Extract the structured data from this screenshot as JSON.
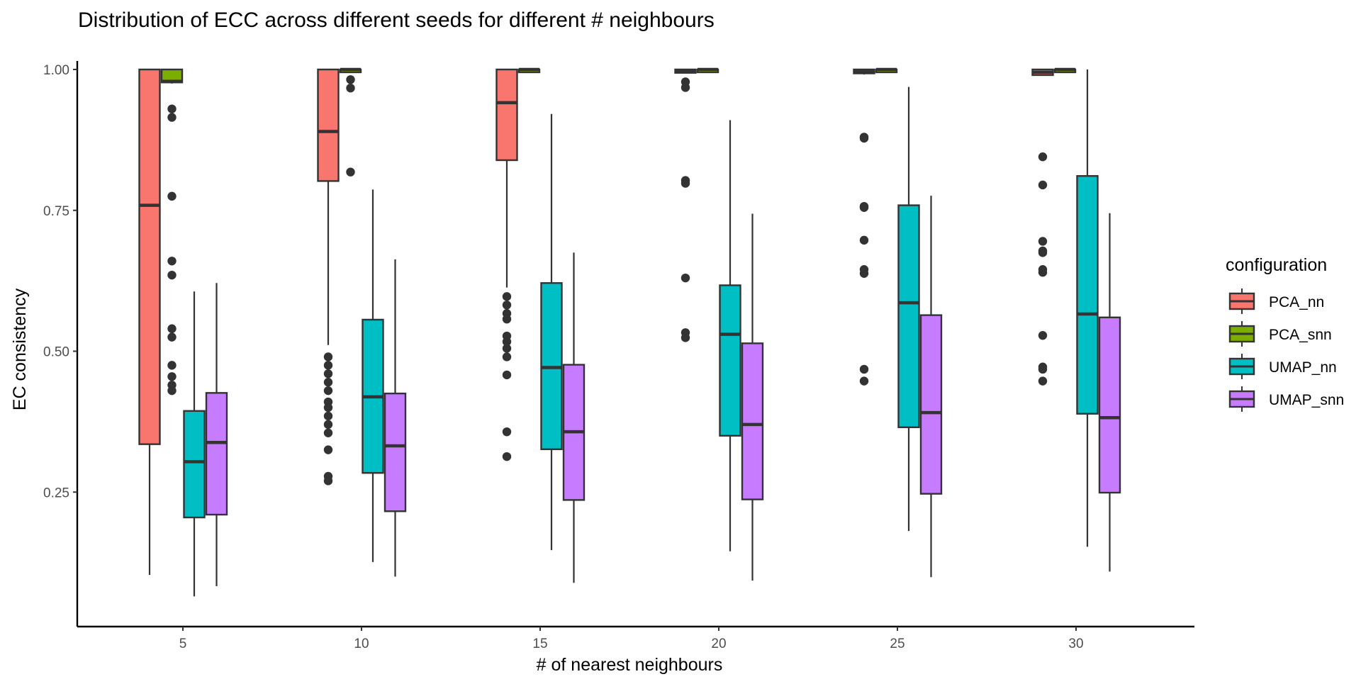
{
  "chart_data": {
    "type": "boxplot",
    "title": "Distribution of ECC across different seeds for different # neighbours",
    "xlabel": "# of nearest neighbours",
    "ylabel": "EC consistency",
    "categories": [
      "5",
      "10",
      "15",
      "20",
      "25",
      "30"
    ],
    "yticks": [
      "0.25",
      "0.50",
      "0.75",
      "1.00"
    ],
    "ytick_values": [
      0.25,
      0.5,
      0.75,
      1.0
    ],
    "ylim": [
      0.03,
      1.03
    ],
    "grid": false,
    "legend": {
      "title": "configuration",
      "position": "right"
    },
    "series": [
      {
        "name": "PCA_nn",
        "color": "#F8766D",
        "boxes": [
          {
            "lo": 0.103,
            "q1": 0.335,
            "med": 0.759,
            "q3": 1.0,
            "hi": 1.0,
            "outliers": []
          },
          {
            "lo": 0.511,
            "q1": 0.802,
            "med": 0.89,
            "q3": 1.0,
            "hi": 1.0,
            "outliers": [
              0.49,
              0.475,
              0.46,
              0.445,
              0.43,
              0.41,
              0.4,
              0.385,
              0.37,
              0.355,
              0.325,
              0.278,
              0.27
            ]
          },
          {
            "lo": 0.613,
            "q1": 0.839,
            "med": 0.941,
            "q3": 1.0,
            "hi": 1.0,
            "outliers": [
              0.597,
              0.582,
              0.567,
              0.557,
              0.527,
              0.517,
              0.505,
              0.49,
              0.458,
              0.357,
              0.313
            ]
          },
          {
            "lo": 0.993,
            "q1": 0.994,
            "med": 0.998,
            "q3": 1.0,
            "hi": 1.0,
            "outliers": [
              0.978,
              0.968,
              0.803,
              0.798,
              0.63,
              0.533,
              0.524
            ]
          },
          {
            "lo": 0.991,
            "q1": 0.993,
            "med": 0.997,
            "q3": 1.0,
            "hi": 1.0,
            "outliers": [
              0.88,
              0.878,
              0.757,
              0.755,
              0.697,
              0.645,
              0.638,
              0.468,
              0.447
            ]
          },
          {
            "lo": 0.989,
            "q1": 0.99,
            "med": 0.995,
            "q3": 1.0,
            "hi": 1.0,
            "outliers": [
              0.845,
              0.795,
              0.695,
              0.678,
              0.675,
              0.645,
              0.64,
              0.528,
              0.472,
              0.468,
              0.447
            ]
          }
        ]
      },
      {
        "name": "PCA_snn",
        "color": "#7CAE00",
        "boxes": [
          {
            "lo": 0.975,
            "q1": 0.977,
            "med": 0.979,
            "q3": 1.0,
            "hi": 1.0,
            "outliers": [
              0.93,
              0.915,
              0.775,
              0.66,
              0.635,
              0.54,
              0.525,
              0.475,
              0.455,
              0.44,
              0.43
            ]
          },
          {
            "lo": 1.0,
            "q1": 0.999,
            "med": 1.0,
            "q3": 1.0,
            "hi": 1.0,
            "outliers": [
              0.982,
              0.967,
              0.818
            ]
          },
          {
            "lo": 1.0,
            "q1": 0.999,
            "med": 1.0,
            "q3": 1.0,
            "hi": 1.0,
            "outliers": []
          },
          {
            "lo": 1.0,
            "q1": 0.999,
            "med": 1.0,
            "q3": 1.0,
            "hi": 1.0,
            "outliers": []
          },
          {
            "lo": 1.0,
            "q1": 0.999,
            "med": 1.0,
            "q3": 1.0,
            "hi": 1.0,
            "outliers": []
          },
          {
            "lo": 1.0,
            "q1": 0.999,
            "med": 1.0,
            "q3": 1.0,
            "hi": 1.0,
            "outliers": []
          }
        ]
      },
      {
        "name": "UMAP_nn",
        "color": "#00BFC4",
        "boxes": [
          {
            "lo": 0.065,
            "q1": 0.205,
            "med": 0.304,
            "q3": 0.394,
            "hi": 0.606,
            "outliers": []
          },
          {
            "lo": 0.126,
            "q1": 0.284,
            "med": 0.419,
            "q3": 0.556,
            "hi": 0.787,
            "outliers": []
          },
          {
            "lo": 0.147,
            "q1": 0.326,
            "med": 0.471,
            "q3": 0.621,
            "hi": 0.921,
            "outliers": []
          },
          {
            "lo": 0.145,
            "q1": 0.35,
            "med": 0.53,
            "q3": 0.617,
            "hi": 0.91,
            "outliers": []
          },
          {
            "lo": 0.181,
            "q1": 0.365,
            "med": 0.586,
            "q3": 0.759,
            "hi": 0.969,
            "outliers": []
          },
          {
            "lo": 0.153,
            "q1": 0.389,
            "med": 0.566,
            "q3": 0.811,
            "hi": 1.0,
            "outliers": []
          }
        ]
      },
      {
        "name": "UMAP_snn",
        "color": "#C77CFF",
        "boxes": [
          {
            "lo": 0.083,
            "q1": 0.21,
            "med": 0.338,
            "q3": 0.426,
            "hi": 0.621,
            "outliers": []
          },
          {
            "lo": 0.1,
            "q1": 0.216,
            "med": 0.332,
            "q3": 0.425,
            "hi": 0.663,
            "outliers": []
          },
          {
            "lo": 0.089,
            "q1": 0.236,
            "med": 0.357,
            "q3": 0.476,
            "hi": 0.675,
            "outliers": []
          },
          {
            "lo": 0.093,
            "q1": 0.237,
            "med": 0.37,
            "q3": 0.514,
            "hi": 0.744,
            "outliers": []
          },
          {
            "lo": 0.099,
            "q1": 0.247,
            "med": 0.391,
            "q3": 0.564,
            "hi": 0.776,
            "outliers": []
          },
          {
            "lo": 0.109,
            "q1": 0.249,
            "med": 0.382,
            "q3": 0.56,
            "hi": 0.745,
            "outliers": []
          }
        ]
      }
    ]
  }
}
